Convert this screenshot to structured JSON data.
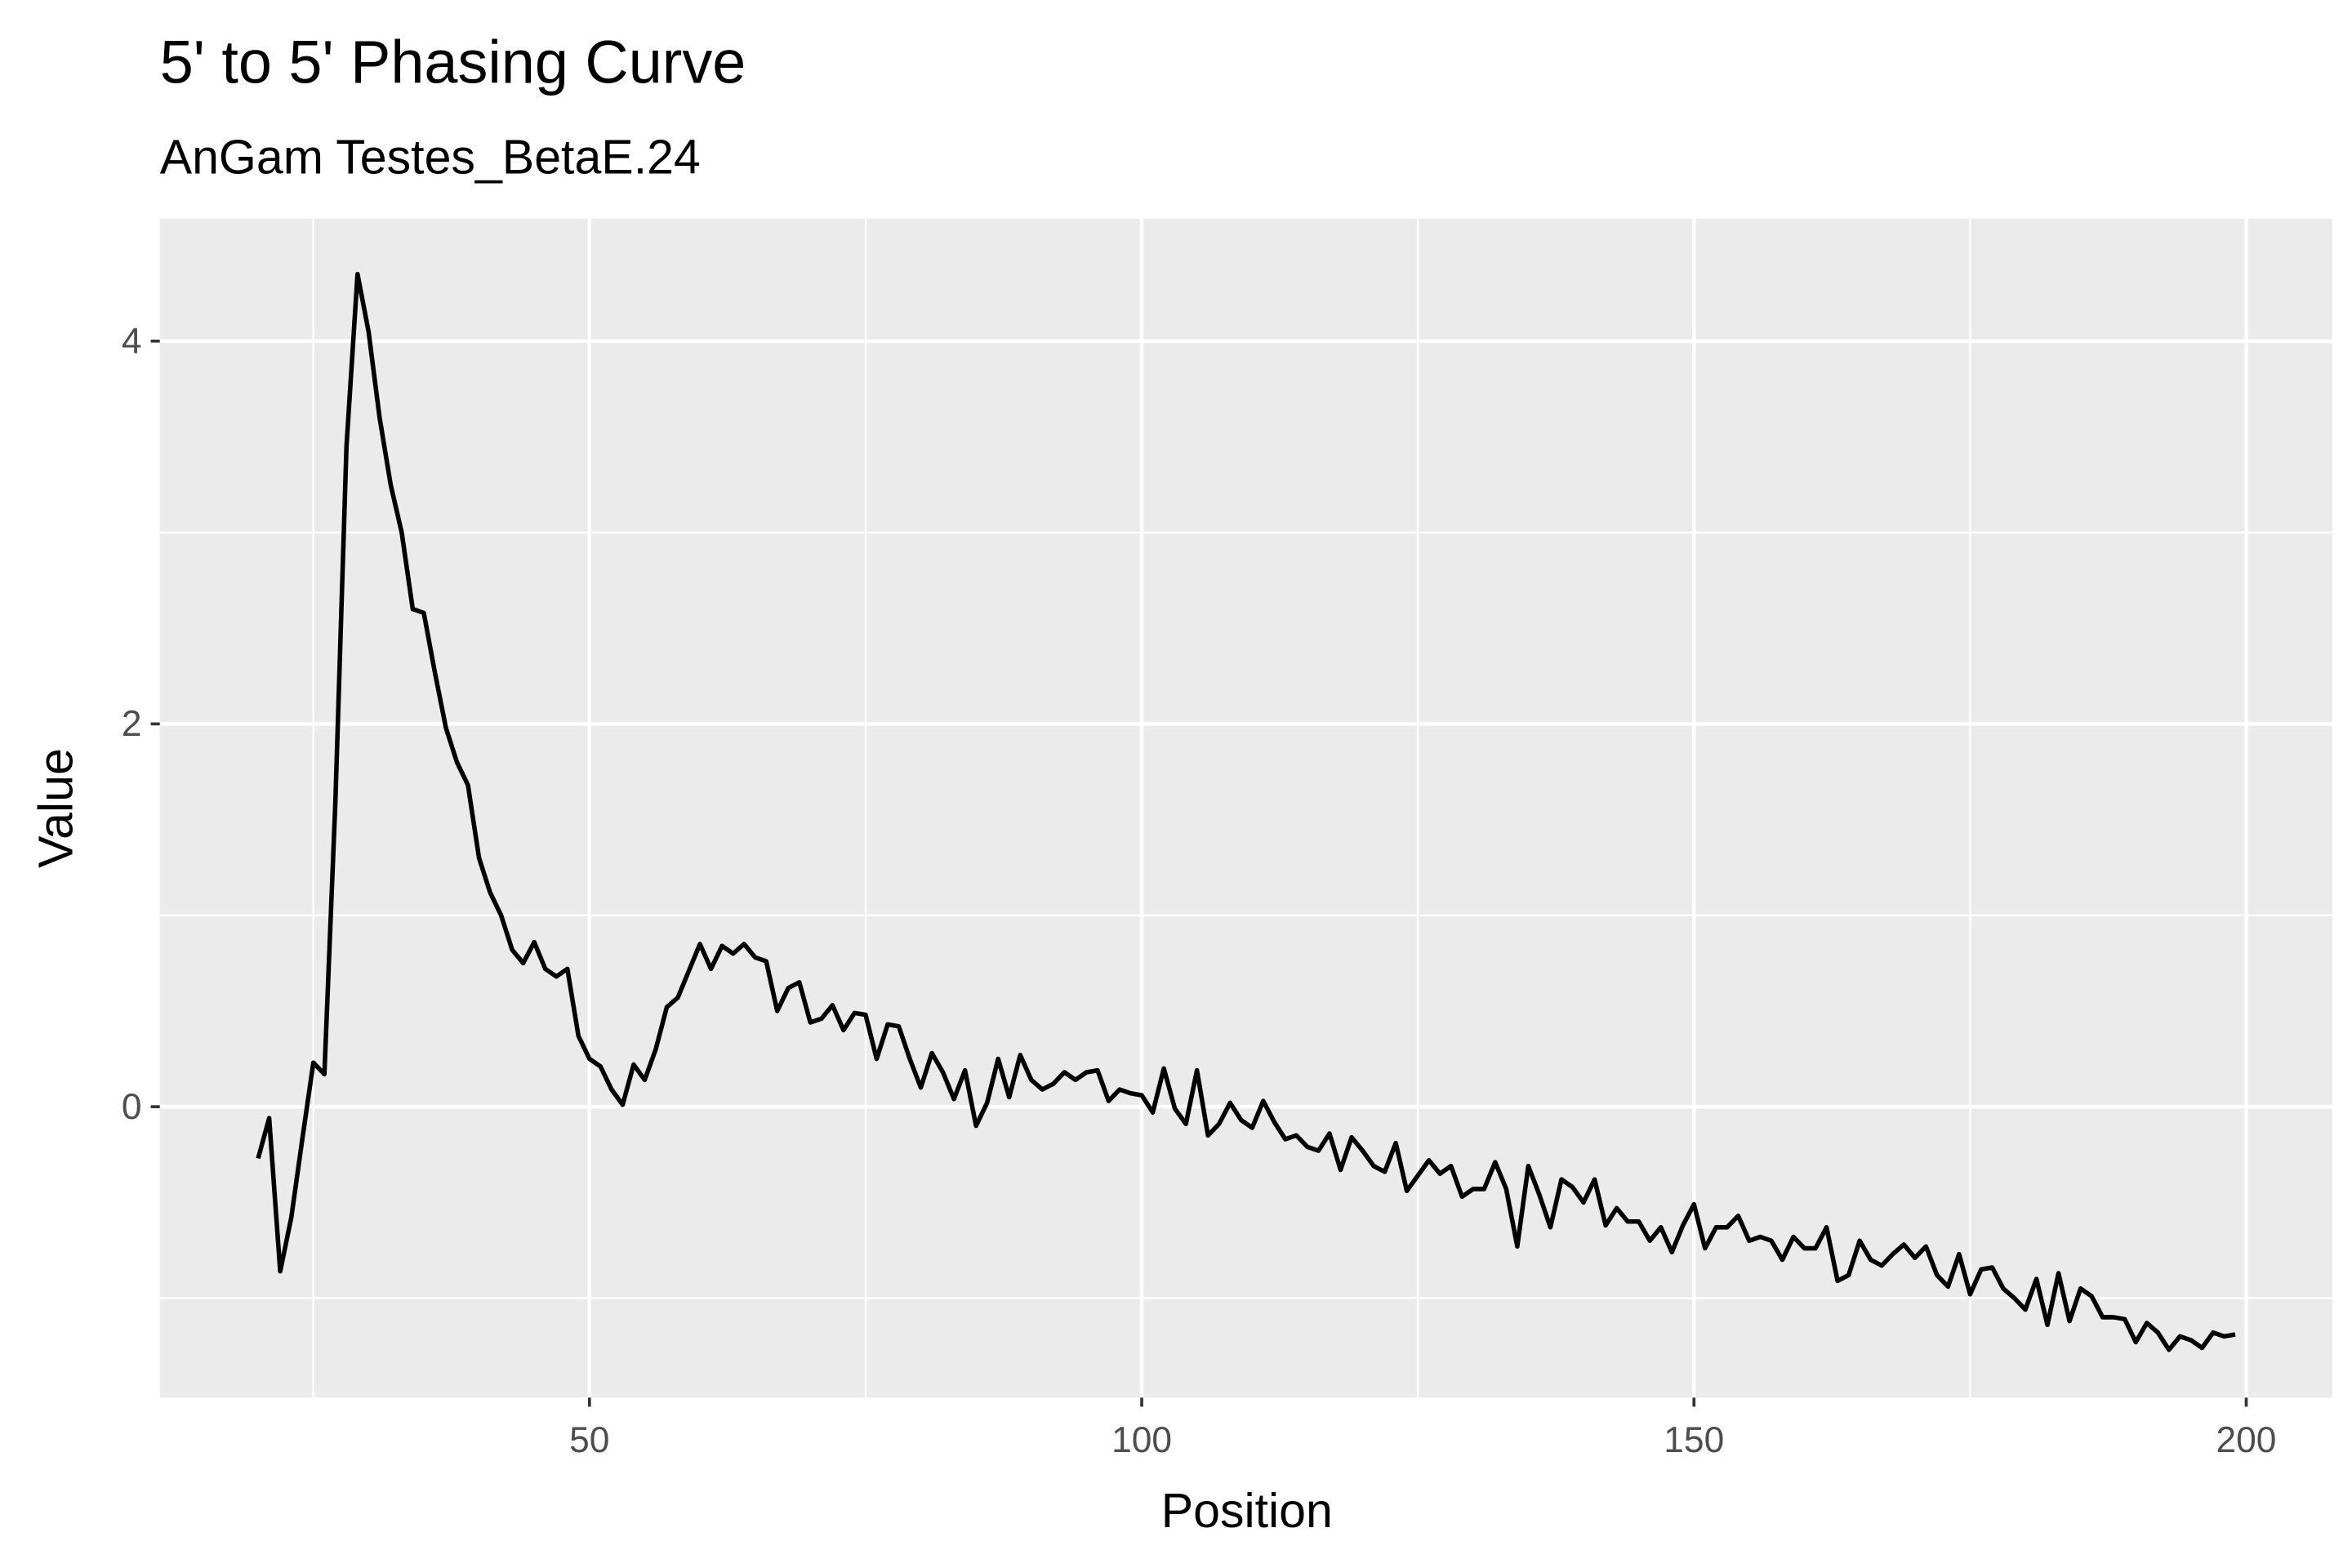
{
  "chart_data": {
    "type": "line",
    "title": "5' to 5' Phasing Curve",
    "subtitle": "AnGam Testes_BetaE.24",
    "x_label": "Position",
    "y_label": "Value",
    "x": [
      20,
      21,
      22,
      23,
      24,
      25,
      26,
      27,
      28,
      29,
      30,
      31,
      32,
      33,
      34,
      35,
      36,
      37,
      38,
      39,
      40,
      41,
      42,
      43,
      44,
      45,
      46,
      47,
      48,
      49,
      50,
      51,
      52,
      53,
      54,
      55,
      56,
      57,
      58,
      59,
      60,
      61,
      62,
      63,
      64,
      65,
      66,
      67,
      68,
      69,
      70,
      71,
      72,
      73,
      74,
      75,
      76,
      77,
      78,
      79,
      80,
      81,
      82,
      83,
      84,
      85,
      86,
      87,
      88,
      89,
      90,
      91,
      92,
      93,
      94,
      95,
      96,
      97,
      98,
      99,
      100,
      101,
      102,
      103,
      104,
      105,
      106,
      107,
      108,
      109,
      110,
      111,
      112,
      113,
      114,
      115,
      116,
      117,
      118,
      119,
      120,
      121,
      122,
      123,
      124,
      125,
      126,
      127,
      128,
      129,
      130,
      131,
      132,
      133,
      134,
      135,
      136,
      137,
      138,
      139,
      140,
      141,
      142,
      143,
      144,
      145,
      146,
      147,
      148,
      149,
      150,
      151,
      152,
      153,
      154,
      155,
      156,
      157,
      158,
      159,
      160,
      161,
      162,
      163,
      164,
      165,
      166,
      167,
      168,
      169,
      170,
      171,
      172,
      173,
      174,
      175,
      176,
      177,
      178,
      179,
      180,
      181,
      182,
      183,
      184,
      185,
      186,
      187,
      188,
      189,
      190,
      191,
      192,
      193,
      194,
      195,
      196,
      197,
      198,
      199
    ],
    "series": [
      {
        "name": "Value",
        "color": "#000000",
        "values": [
          -0.27,
          -0.06,
          -0.86,
          -0.58,
          -0.17,
          0.23,
          0.17,
          1.6,
          3.45,
          4.35,
          4.05,
          3.6,
          3.25,
          3.0,
          2.6,
          2.58,
          2.27,
          1.98,
          1.8,
          1.68,
          1.3,
          1.12,
          1.0,
          0.82,
          0.75,
          0.86,
          0.72,
          0.68,
          0.72,
          0.37,
          0.25,
          0.21,
          0.09,
          0.01,
          0.22,
          0.14,
          0.3,
          0.52,
          0.57,
          0.71,
          0.85,
          0.72,
          0.84,
          0.8,
          0.85,
          0.78,
          0.76,
          0.5,
          0.62,
          0.65,
          0.44,
          0.46,
          0.53,
          0.4,
          0.49,
          0.48,
          0.25,
          0.43,
          0.42,
          0.25,
          0.1,
          0.28,
          0.18,
          0.04,
          0.19,
          -0.1,
          0.02,
          0.25,
          0.05,
          0.27,
          0.14,
          0.09,
          0.12,
          0.18,
          0.14,
          0.18,
          0.19,
          0.03,
          0.09,
          0.07,
          0.06,
          -0.03,
          0.2,
          -0.01,
          -0.09,
          0.19,
          -0.15,
          -0.09,
          0.02,
          -0.07,
          -0.11,
          0.03,
          -0.08,
          -0.17,
          -0.15,
          -0.21,
          -0.23,
          -0.14,
          -0.33,
          -0.16,
          -0.23,
          -0.31,
          -0.34,
          -0.19,
          -0.44,
          -0.36,
          -0.28,
          -0.35,
          -0.31,
          -0.47,
          -0.43,
          -0.43,
          -0.29,
          -0.43,
          -0.73,
          -0.31,
          -0.46,
          -0.63,
          -0.38,
          -0.42,
          -0.5,
          -0.38,
          -0.62,
          -0.53,
          -0.6,
          -0.6,
          -0.7,
          -0.63,
          -0.76,
          -0.62,
          -0.51,
          -0.74,
          -0.63,
          -0.63,
          -0.57,
          -0.7,
          -0.68,
          -0.7,
          -0.8,
          -0.68,
          -0.74,
          -0.74,
          -0.63,
          -0.91,
          -0.88,
          -0.7,
          -0.8,
          -0.83,
          -0.77,
          -0.72,
          -0.79,
          -0.73,
          -0.88,
          -0.94,
          -0.77,
          -0.98,
          -0.85,
          -0.84,
          -0.95,
          -1.0,
          -1.06,
          -0.9,
          -1.14,
          -0.87,
          -1.12,
          -0.95,
          -0.99,
          -1.1,
          -1.1,
          -1.11,
          -1.23,
          -1.13,
          -1.18,
          -1.27,
          -1.2,
          -1.22,
          -1.26,
          -1.18,
          -1.2,
          -1.19
        ]
      }
    ],
    "xlim": [
      11.1,
      207.8
    ],
    "xticks": [
      50,
      100,
      150,
      200
    ],
    "xminor": [
      25,
      75,
      125,
      175
    ],
    "ylim": [
      -1.52,
      4.64
    ],
    "yticks": [
      0,
      2,
      4
    ],
    "yminor": [
      -1,
      1,
      3
    ],
    "grid": true,
    "background": "#ebebeb"
  }
}
